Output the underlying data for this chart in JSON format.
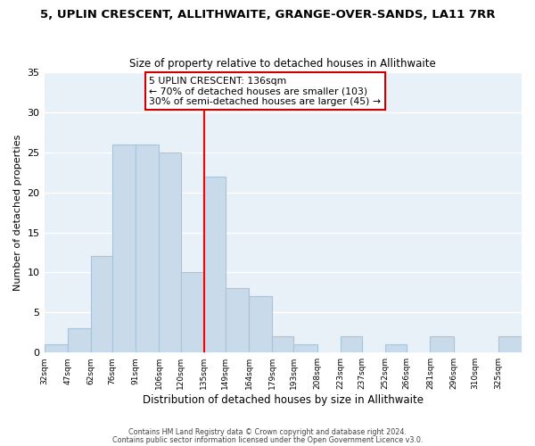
{
  "title": "5, UPLIN CRESCENT, ALLITHWAITE, GRANGE-OVER-SANDS, LA11 7RR",
  "subtitle": "Size of property relative to detached houses in Allithwaite",
  "xlabel": "Distribution of detached houses by size in Allithwaite",
  "ylabel": "Number of detached properties",
  "bar_edges": [
    32,
    47,
    62,
    76,
    91,
    106,
    120,
    135,
    149,
    164,
    179,
    193,
    208,
    223,
    237,
    252,
    266,
    281,
    296,
    310,
    325,
    340
  ],
  "bar_heights": [
    1,
    3,
    12,
    26,
    26,
    25,
    10,
    22,
    8,
    7,
    2,
    1,
    0,
    2,
    0,
    1,
    0,
    2,
    0,
    0,
    2
  ],
  "bar_color": "#c9daea",
  "bar_edgecolor": "#a8c4d8",
  "redline_x": 135,
  "ylim": [
    0,
    35
  ],
  "annotation_title": "5 UPLIN CRESCENT: 136sqm",
  "annotation_line1": "← 70% of detached houses are smaller (103)",
  "annotation_line2": "30% of semi-detached houses are larger (45) →",
  "annotation_box_facecolor": "#ffffff",
  "annotation_box_edgecolor": "#cc0000",
  "footnote1": "Contains HM Land Registry data © Crown copyright and database right 2024.",
  "footnote2": "Contains public sector information licensed under the Open Government Licence v3.0.",
  "tick_labels": [
    "32sqm",
    "47sqm",
    "62sqm",
    "76sqm",
    "91sqm",
    "106sqm",
    "120sqm",
    "135sqm",
    "149sqm",
    "164sqm",
    "179sqm",
    "193sqm",
    "208sqm",
    "223sqm",
    "237sqm",
    "252sqm",
    "266sqm",
    "281sqm",
    "296sqm",
    "310sqm",
    "325sqm"
  ],
  "background_color": "#ffffff",
  "plot_bg_color": "#e8f0f8",
  "grid_color": "#ffffff",
  "yticks": [
    0,
    5,
    10,
    15,
    20,
    25,
    30,
    35
  ]
}
